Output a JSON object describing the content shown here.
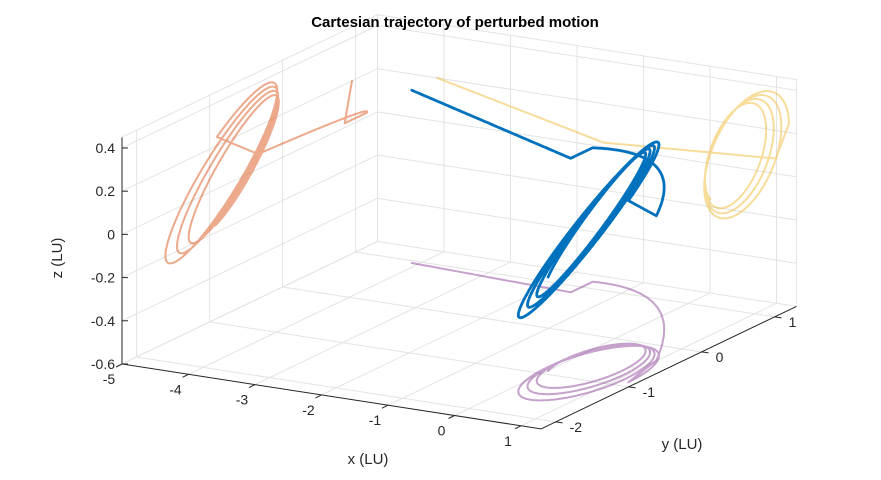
{
  "chart_data": {
    "type": "line",
    "subtype": "3d-trajectory",
    "title": "Cartesian trajectory of perturbed motion",
    "xlabel": "x (LU)",
    "ylabel": "y (LU)",
    "zlabel": "z (LU)",
    "xlim": [
      -5,
      1.3
    ],
    "ylim": [
      -2.2,
      1.3
    ],
    "zlim": [
      -0.6,
      0.45
    ],
    "x_ticks": [
      "-5",
      "-4",
      "-3",
      "-2",
      "-1",
      "0",
      "1"
    ],
    "y_ticks": [
      "-2",
      "-1",
      "0",
      "1"
    ],
    "z_ticks": [
      "-0.6",
      "-0.4",
      "-0.2",
      "0",
      "0.2",
      "0.4"
    ],
    "grid": true,
    "colors": {
      "trajectory": "#0072BD",
      "projection_xz": "#D95319",
      "projection_xy": "#7E2F8E",
      "projection_yz": "#EDB120"
    },
    "series": [
      {
        "role": "trajectory-3d",
        "description_visible": false
      },
      {
        "role": "projection-onto-x-z-wall"
      },
      {
        "role": "projection-onto-x-y-floor"
      },
      {
        "role": "projection-onto-y-z-wall"
      }
    ]
  }
}
